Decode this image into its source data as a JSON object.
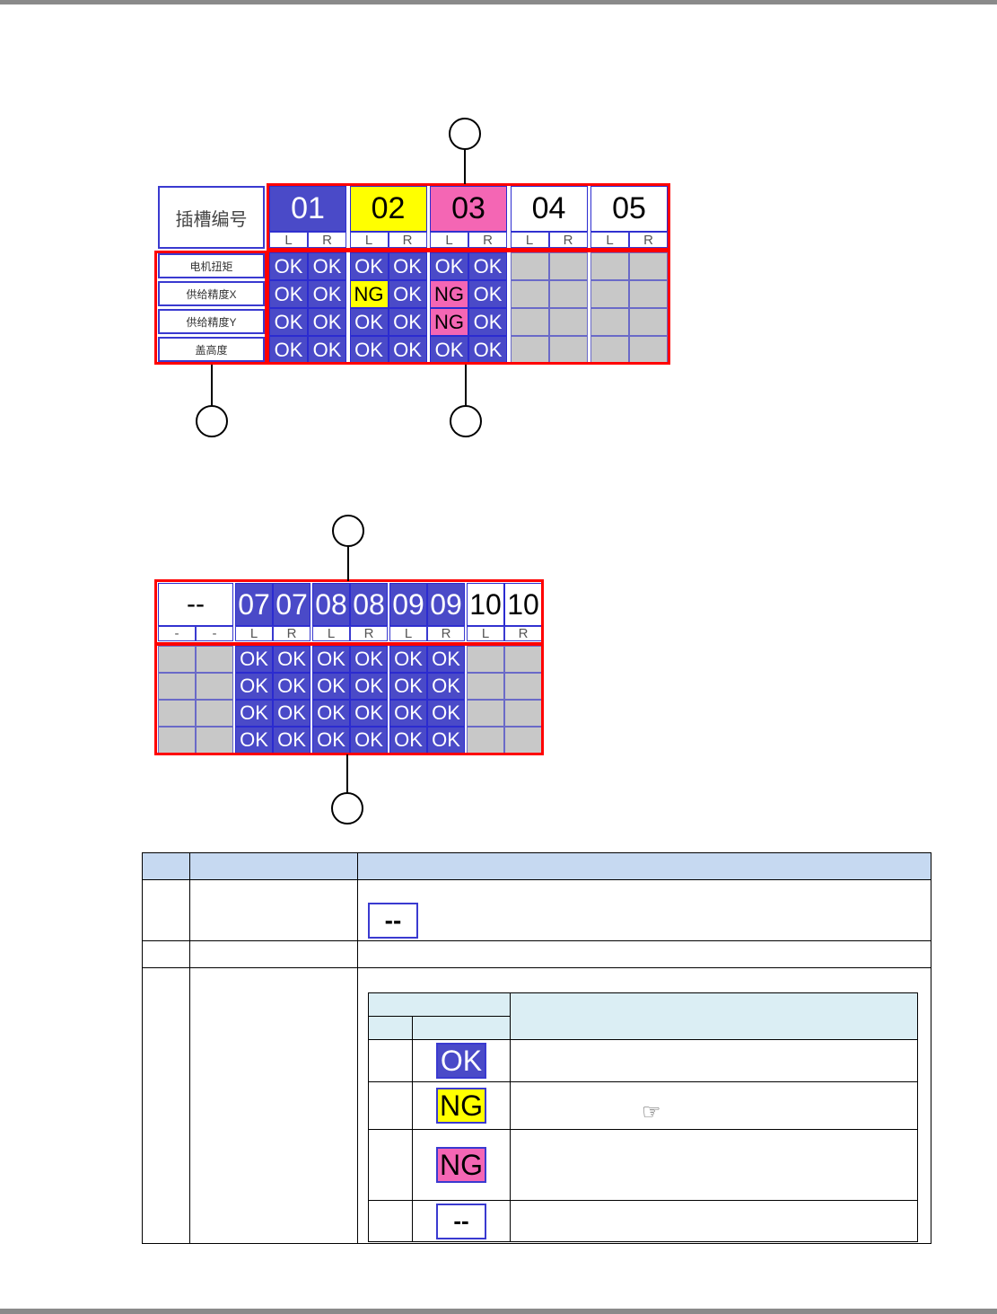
{
  "colors": {
    "ok": "#4a4ac8",
    "ng_yellow": "#ffff00",
    "ng_pink": "#f466b4",
    "empty": "#c8c8c8",
    "callout": "#ff0000",
    "header": "#c6d9f1"
  },
  "top": {
    "slot_header_label": "插槽编号",
    "row_labels": [
      "电机扭矩",
      "供给精度X",
      "供给精度Y",
      "盖高度"
    ],
    "slots": [
      {
        "num": "01",
        "style": "ok",
        "sides": [
          "L",
          "R"
        ],
        "cells": [
          [
            "OK",
            "OK"
          ],
          [
            "OK",
            "OK"
          ],
          [
            "OK",
            "OK"
          ],
          [
            "OK",
            "OK"
          ]
        ]
      },
      {
        "num": "02",
        "style": "ngy",
        "sides": [
          "L",
          "R"
        ],
        "cells": [
          [
            "OK",
            "OK"
          ],
          [
            "NG",
            "OK"
          ],
          [
            "OK",
            "OK"
          ],
          [
            "OK",
            "OK"
          ]
        ]
      },
      {
        "num": "03",
        "style": "ngp",
        "sides": [
          "L",
          "R"
        ],
        "cells": [
          [
            "OK",
            "OK"
          ],
          [
            "NG",
            "OK"
          ],
          [
            "NG",
            "OK"
          ],
          [
            "OK",
            "OK"
          ]
        ]
      },
      {
        "num": "04",
        "style": "white",
        "sides": [
          "L",
          "R"
        ],
        "cells": [
          [
            "",
            ""
          ],
          [
            "",
            ""
          ],
          [
            "",
            ""
          ],
          [
            "",
            ""
          ]
        ]
      },
      {
        "num": "05",
        "style": "white",
        "sides": [
          "L",
          "R"
        ],
        "cells": [
          [
            "",
            ""
          ],
          [
            "",
            ""
          ],
          [
            "",
            ""
          ],
          [
            "",
            ""
          ]
        ]
      }
    ],
    "ng_yellow_cells": [
      [
        1,
        1,
        0
      ]
    ],
    "ng_pink_cells": [
      [
        2,
        1,
        0
      ],
      [
        2,
        2,
        0
      ]
    ]
  },
  "bottom": {
    "slots": [
      {
        "num": "--",
        "style": "white",
        "sides": [
          "-",
          "-"
        ],
        "split": false,
        "cells": [
          [
            "",
            ""
          ],
          [
            "",
            ""
          ],
          [
            "",
            ""
          ],
          [
            "",
            ""
          ]
        ]
      },
      {
        "num": "07",
        "style": "ok",
        "sides": [
          "L",
          "R"
        ],
        "split": true,
        "cells": [
          [
            "OK",
            "OK"
          ],
          [
            "OK",
            "OK"
          ],
          [
            "OK",
            "OK"
          ],
          [
            "OK",
            "OK"
          ]
        ]
      },
      {
        "num": "08",
        "style": "ok",
        "sides": [
          "L",
          "R"
        ],
        "split": true,
        "cells": [
          [
            "OK",
            "OK"
          ],
          [
            "OK",
            "OK"
          ],
          [
            "OK",
            "OK"
          ],
          [
            "OK",
            "OK"
          ]
        ]
      },
      {
        "num": "09",
        "style": "ok",
        "sides": [
          "L",
          "R"
        ],
        "split": true,
        "cells": [
          [
            "OK",
            "OK"
          ],
          [
            "OK",
            "OK"
          ],
          [
            "OK",
            "OK"
          ],
          [
            "OK",
            "OK"
          ]
        ]
      },
      {
        "num": "10",
        "style": "white",
        "sides": [
          "L",
          "R"
        ],
        "split": true,
        "cells": [
          [
            "",
            ""
          ],
          [
            "",
            ""
          ],
          [
            "",
            ""
          ],
          [
            "",
            ""
          ]
        ]
      }
    ]
  },
  "legend": {
    "dash_badge": "--",
    "ok": "OK",
    "ng": "NG",
    "dash": "--",
    "pointer_icon": "hand-pointing-right-icon"
  }
}
